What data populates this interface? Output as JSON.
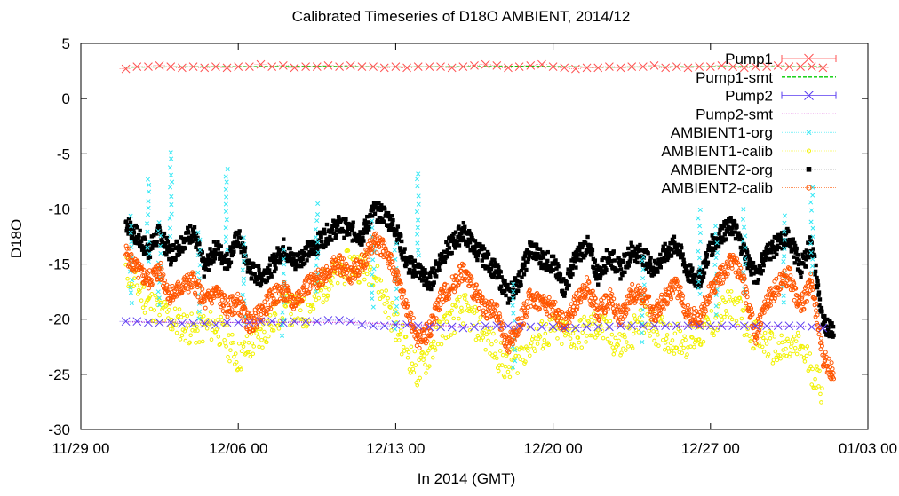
{
  "chart_data": {
    "type": "scatter",
    "title": "Calibrated Timeseries of D18O AMBIENT, 2014/12",
    "xlabel": "In 2014 (GMT)",
    "ylabel": "D18O",
    "x_range": [
      "2014-11-29 00:00",
      "2015-01-03 00:00"
    ],
    "x_ticks": [
      {
        "date": "2014-11-29 00:00",
        "label": "11/29 00"
      },
      {
        "date": "2014-12-06 00:00",
        "label": "12/06 00"
      },
      {
        "date": "2014-12-13 00:00",
        "label": "12/13 00"
      },
      {
        "date": "2014-12-20 00:00",
        "label": "12/20 00"
      },
      {
        "date": "2014-12-27 00:00",
        "label": "12/27 00"
      },
      {
        "date": "2015-01-03 00:00",
        "label": "01/03 00"
      }
    ],
    "ylim": [
      -30,
      5
    ],
    "y_ticks": [
      5,
      0,
      -5,
      -10,
      -15,
      -20,
      -25,
      -30
    ],
    "y_tick_labels": [
      "5",
      "0",
      "-5",
      "-10",
      "-15",
      "-20",
      "-25",
      "-30"
    ],
    "grid": false,
    "legend_position": "top-right",
    "colors": {
      "pump1": "#ff5050",
      "pump1_smt": "#00cc00",
      "pump2": "#5a3cf0",
      "pump2_smt": "#d020d0",
      "ambient1_org": "#33e8f5",
      "ambient1_calib": "#f2f200",
      "ambient2_org": "#000000",
      "ambient2_calib": "#ff5500"
    },
    "series": [
      {
        "key": "pump1",
        "name": "Pump1",
        "marker": "x",
        "style": "points-errorbars",
        "x": [
          "2014-12-01 00:00",
          "2014-12-01 12:00",
          "2014-12-02 00:00",
          "2014-12-02 12:00",
          "2014-12-03 00:00",
          "2014-12-03 12:00",
          "2014-12-04 00:00",
          "2014-12-04 12:00",
          "2014-12-05 00:00",
          "2014-12-05 12:00",
          "2014-12-06 00:00",
          "2014-12-06 12:00",
          "2014-12-07 00:00",
          "2014-12-07 12:00",
          "2014-12-08 00:00",
          "2014-12-08 12:00",
          "2014-12-09 00:00",
          "2014-12-09 12:00",
          "2014-12-10 00:00",
          "2014-12-10 12:00",
          "2014-12-11 00:00",
          "2014-12-11 12:00",
          "2014-12-12 00:00",
          "2014-12-12 12:00",
          "2014-12-13 00:00",
          "2014-12-13 12:00",
          "2014-12-14 00:00",
          "2014-12-14 12:00",
          "2014-12-15 00:00",
          "2014-12-15 12:00",
          "2014-12-16 00:00",
          "2014-12-16 12:00",
          "2014-12-17 00:00",
          "2014-12-17 12:00",
          "2014-12-18 00:00",
          "2014-12-18 12:00",
          "2014-12-19 00:00",
          "2014-12-19 12:00",
          "2014-12-20 00:00",
          "2014-12-20 12:00",
          "2014-12-21 00:00",
          "2014-12-21 12:00",
          "2014-12-22 00:00",
          "2014-12-22 12:00",
          "2014-12-23 00:00",
          "2014-12-23 12:00",
          "2014-12-24 00:00",
          "2014-12-24 12:00",
          "2014-12-25 00:00",
          "2014-12-25 12:00",
          "2014-12-26 00:00",
          "2014-12-26 12:00",
          "2014-12-27 00:00",
          "2014-12-27 12:00",
          "2014-12-28 00:00",
          "2014-12-28 12:00",
          "2014-12-29 00:00",
          "2014-12-29 12:00",
          "2014-12-30 00:00",
          "2014-12-30 12:00",
          "2014-12-31 00:00",
          "2014-12-31 12:00",
          "2015-01-01 00:00"
        ],
        "y": [
          2.7,
          2.9,
          2.9,
          3.0,
          2.9,
          2.8,
          2.9,
          2.8,
          2.9,
          2.8,
          2.9,
          2.9,
          3.1,
          2.9,
          3.0,
          2.8,
          2.9,
          2.9,
          3.0,
          2.9,
          3.0,
          2.9,
          2.9,
          2.8,
          2.9,
          2.8,
          2.9,
          2.9,
          2.9,
          2.8,
          2.9,
          3.0,
          3.1,
          3.0,
          2.8,
          2.9,
          3.0,
          3.1,
          2.9,
          2.8,
          2.7,
          2.8,
          2.8,
          2.9,
          2.8,
          2.9,
          2.9,
          3.0,
          2.8,
          2.9,
          2.8,
          2.9,
          2.9,
          3.0,
          2.9,
          2.8,
          2.9,
          2.9,
          3.0,
          2.9,
          2.9,
          2.9,
          2.8
        ]
      },
      {
        "key": "pump1_smt",
        "name": "Pump1-smt",
        "style": "dashed-line",
        "x": [
          "2014-12-01 00:00",
          "2014-12-04 00:00",
          "2014-12-07 00:00",
          "2014-12-10 00:00",
          "2014-12-13 00:00",
          "2014-12-16 00:00",
          "2014-12-19 00:00",
          "2014-12-22 00:00",
          "2014-12-25 00:00",
          "2014-12-28 00:00",
          "2015-01-01 00:00"
        ],
        "y": [
          2.85,
          2.88,
          2.92,
          2.93,
          2.87,
          2.9,
          2.95,
          2.85,
          2.88,
          2.9,
          2.9
        ]
      },
      {
        "key": "pump2",
        "name": "Pump2",
        "marker": "x",
        "style": "points-errorbars",
        "x": [
          "2014-12-01 00:00",
          "2014-12-01 12:00",
          "2014-12-02 00:00",
          "2014-12-02 12:00",
          "2014-12-03 00:00",
          "2014-12-03 12:00",
          "2014-12-04 00:00",
          "2014-12-04 12:00",
          "2014-12-05 00:00",
          "2014-12-05 12:00",
          "2014-12-06 00:00",
          "2014-12-06 12:00",
          "2014-12-07 00:00",
          "2014-12-07 12:00",
          "2014-12-08 00:00",
          "2014-12-08 12:00",
          "2014-12-09 00:00",
          "2014-12-09 12:00",
          "2014-12-10 00:00",
          "2014-12-10 12:00",
          "2014-12-11 00:00",
          "2014-12-11 12:00",
          "2014-12-12 00:00",
          "2014-12-12 12:00",
          "2014-12-13 00:00",
          "2014-12-13 12:00",
          "2014-12-14 00:00",
          "2014-12-14 12:00",
          "2014-12-15 00:00",
          "2014-12-15 12:00",
          "2014-12-16 00:00",
          "2014-12-16 12:00",
          "2014-12-17 00:00",
          "2014-12-17 12:00",
          "2014-12-18 00:00",
          "2014-12-18 12:00",
          "2014-12-19 00:00",
          "2014-12-19 12:00",
          "2014-12-20 00:00",
          "2014-12-20 12:00",
          "2014-12-21 00:00",
          "2014-12-21 12:00",
          "2014-12-22 00:00",
          "2014-12-22 12:00",
          "2014-12-23 00:00",
          "2014-12-23 12:00",
          "2014-12-24 00:00",
          "2014-12-24 12:00",
          "2014-12-25 00:00",
          "2014-12-25 12:00",
          "2014-12-26 00:00",
          "2014-12-26 12:00",
          "2014-12-27 00:00",
          "2014-12-27 12:00",
          "2014-12-28 00:00",
          "2014-12-28 12:00",
          "2014-12-29 00:00",
          "2014-12-29 12:00",
          "2014-12-30 00:00",
          "2014-12-30 12:00",
          "2014-12-31 00:00",
          "2014-12-31 12:00",
          "2015-01-01 00:00"
        ],
        "y": [
          -20.2,
          -20.2,
          -20.3,
          -20.3,
          -20.3,
          -20.4,
          -20.4,
          -20.4,
          -20.5,
          -20.3,
          -20.3,
          -20.3,
          -20.2,
          -20.2,
          -20.3,
          -20.2,
          -20.2,
          -20.2,
          -20.1,
          -20.1,
          -20.2,
          -20.5,
          -20.6,
          -20.6,
          -20.5,
          -20.5,
          -20.6,
          -20.7,
          -20.7,
          -20.7,
          -20.8,
          -20.7,
          -20.6,
          -20.6,
          -20.6,
          -20.6,
          -20.7,
          -20.7,
          -20.7,
          -20.8,
          -20.8,
          -20.7,
          -20.7,
          -20.7,
          -20.6,
          -20.6,
          -20.6,
          -20.6,
          -20.6,
          -20.6,
          -20.6,
          -20.6,
          -20.6,
          -20.6,
          -20.6,
          -20.6,
          -20.6,
          -20.6,
          -20.6,
          -20.6,
          -20.6,
          -20.7,
          -20.8
        ]
      },
      {
        "key": "pump2_smt",
        "name": "Pump2-smt",
        "style": "dotted-line",
        "x": [
          "2014-12-01 00:00",
          "2014-12-06 00:00",
          "2014-12-11 00:00",
          "2014-12-16 00:00",
          "2014-12-21 00:00",
          "2014-12-26 00:00",
          "2015-01-01 00:00"
        ],
        "y": [
          -20.25,
          -20.3,
          -20.3,
          -20.65,
          -20.75,
          -20.62,
          -20.7
        ]
      },
      {
        "key": "ambient2_org",
        "name": "AMBIENT2-org",
        "marker": "square",
        "style": "dense-points",
        "x": [
          "2014-12-01 00:00",
          "2014-12-01 12:00",
          "2014-12-02 00:00",
          "2014-12-02 12:00",
          "2014-12-03 00:00",
          "2014-12-03 12:00",
          "2014-12-04 00:00",
          "2014-12-04 12:00",
          "2014-12-05 00:00",
          "2014-12-05 12:00",
          "2014-12-06 00:00",
          "2014-12-06 12:00",
          "2014-12-07 00:00",
          "2014-12-07 12:00",
          "2014-12-08 00:00",
          "2014-12-08 12:00",
          "2014-12-09 00:00",
          "2014-12-09 12:00",
          "2014-12-10 00:00",
          "2014-12-10 12:00",
          "2014-12-11 00:00",
          "2014-12-11 12:00",
          "2014-12-12 00:00",
          "2014-12-12 12:00",
          "2014-12-13 00:00",
          "2014-12-13 12:00",
          "2014-12-14 00:00",
          "2014-12-14 12:00",
          "2014-12-15 00:00",
          "2014-12-15 12:00",
          "2014-12-16 00:00",
          "2014-12-16 12:00",
          "2014-12-17 00:00",
          "2014-12-17 12:00",
          "2014-12-18 00:00",
          "2014-12-18 12:00",
          "2014-12-19 00:00",
          "2014-12-19 12:00",
          "2014-12-20 00:00",
          "2014-12-20 12:00",
          "2014-12-21 00:00",
          "2014-12-21 12:00",
          "2014-12-22 00:00",
          "2014-12-22 12:00",
          "2014-12-23 00:00",
          "2014-12-23 12:00",
          "2014-12-24 00:00",
          "2014-12-24 12:00",
          "2014-12-25 00:00",
          "2014-12-25 12:00",
          "2014-12-26 00:00",
          "2014-12-26 12:00",
          "2014-12-27 00:00",
          "2014-12-27 12:00",
          "2014-12-28 00:00",
          "2014-12-28 12:00",
          "2014-12-29 00:00",
          "2014-12-29 12:00",
          "2014-12-30 00:00",
          "2014-12-30 12:00",
          "2014-12-31 00:00",
          "2014-12-31 12:00",
          "2015-01-01 00:00",
          "2015-01-01 12:00"
        ],
        "y": [
          -11.2,
          -12.5,
          -13.8,
          -12.2,
          -14.2,
          -13.0,
          -12.0,
          -15.5,
          -13.5,
          -14.8,
          -12.5,
          -15.5,
          -16.2,
          -15.2,
          -13.5,
          -14.8,
          -14.0,
          -13.2,
          -12.2,
          -11.5,
          -12.0,
          -12.5,
          -10.2,
          -10.5,
          -11.8,
          -15.0,
          -15.5,
          -16.8,
          -14.5,
          -13.2,
          -12.0,
          -13.5,
          -14.5,
          -15.8,
          -17.8,
          -16.5,
          -13.5,
          -14.5,
          -15.0,
          -17.2,
          -14.5,
          -13.2,
          -16.0,
          -14.2,
          -15.5,
          -13.8,
          -14.2,
          -15.5,
          -14.0,
          -13.2,
          -15.8,
          -16.5,
          -13.5,
          -12.2,
          -11.5,
          -13.8,
          -16.2,
          -14.0,
          -13.2,
          -12.5,
          -15.5,
          -13.0,
          -20.5,
          -20.8
        ]
      },
      {
        "key": "ambient1_org",
        "name": "AMBIENT1-org",
        "marker": "x",
        "style": "dense-points",
        "x": [
          "2014-12-01 06:00",
          "2014-12-02 00:00",
          "2014-12-02 12:00",
          "2014-12-03 00:00",
          "2014-12-04 06:00",
          "2014-12-05 12:00",
          "2014-12-06 06:00",
          "2014-12-08 00:00",
          "2014-12-09 12:00",
          "2014-12-12 00:00",
          "2014-12-13 00:00",
          "2014-12-14 00:00",
          "2014-12-18 06:00",
          "2014-12-24 00:00",
          "2014-12-26 12:00",
          "2014-12-27 06:00",
          "2014-12-28 12:00",
          "2014-12-30 06:00",
          "2014-12-31 12:00"
        ],
        "y": [
          -10.5,
          -7.0,
          -11.0,
          -4.5,
          -12.0,
          -6.0,
          -12.5,
          -13.5,
          -9.5,
          -11.0,
          -13.0,
          -6.5,
          -16.5,
          -14.0,
          -10.0,
          -11.5,
          -10.0,
          -10.5,
          -8.0
        ]
      },
      {
        "key": "ambient1_calib",
        "name": "AMBIENT1-calib",
        "marker": "dot",
        "style": "dense-points",
        "x": [
          "2014-12-01 00:00",
          "2014-12-02 00:00",
          "2014-12-03 00:00",
          "2014-12-04 00:00",
          "2014-12-05 00:00",
          "2014-12-06 00:00",
          "2014-12-07 00:00",
          "2014-12-08 00:00",
          "2014-12-09 00:00",
          "2014-12-10 00:00",
          "2014-12-11 00:00",
          "2014-12-12 00:00",
          "2014-12-13 00:00",
          "2014-12-14 00:00",
          "2014-12-15 00:00",
          "2014-12-16 00:00",
          "2014-12-17 00:00",
          "2014-12-18 00:00",
          "2014-12-19 00:00",
          "2014-12-20 00:00",
          "2014-12-21 00:00",
          "2014-12-22 00:00",
          "2014-12-23 00:00",
          "2014-12-24 00:00",
          "2014-12-25 00:00",
          "2014-12-26 00:00",
          "2014-12-27 00:00",
          "2014-12-28 00:00",
          "2014-12-29 00:00",
          "2014-12-30 00:00",
          "2014-12-31 00:00",
          "2015-01-01 00:00"
        ],
        "y": [
          -15.5,
          -18.5,
          -20.0,
          -21.0,
          -20.5,
          -23.5,
          -21.5,
          -19.0,
          -19.5,
          -16.5,
          -15.0,
          -15.5,
          -20.5,
          -25.0,
          -21.0,
          -19.0,
          -21.5,
          -24.5,
          -22.0,
          -21.0,
          -21.5,
          -20.5,
          -22.5,
          -20.0,
          -21.5,
          -22.0,
          -20.5,
          -18.5,
          -21.5,
          -23.0,
          -22.5,
          -26.5
        ]
      },
      {
        "key": "ambient2_calib",
        "name": "AMBIENT2-calib",
        "marker": "circle",
        "style": "dense-points",
        "x": [
          "2014-12-01 00:00",
          "2014-12-01 12:00",
          "2014-12-02 00:00",
          "2014-12-02 12:00",
          "2014-12-03 00:00",
          "2014-12-03 12:00",
          "2014-12-04 00:00",
          "2014-12-04 12:00",
          "2014-12-05 00:00",
          "2014-12-05 12:00",
          "2014-12-06 00:00",
          "2014-12-06 12:00",
          "2014-12-07 00:00",
          "2014-12-07 12:00",
          "2014-12-08 00:00",
          "2014-12-08 12:00",
          "2014-12-09 00:00",
          "2014-12-09 12:00",
          "2014-12-10 00:00",
          "2014-12-10 12:00",
          "2014-12-11 00:00",
          "2014-12-11 12:00",
          "2014-12-12 00:00",
          "2014-12-12 12:00",
          "2014-12-13 00:00",
          "2014-12-13 12:00",
          "2014-12-14 00:00",
          "2014-12-14 12:00",
          "2014-12-15 00:00",
          "2014-12-15 12:00",
          "2014-12-16 00:00",
          "2014-12-16 12:00",
          "2014-12-17 00:00",
          "2014-12-17 12:00",
          "2014-12-18 00:00",
          "2014-12-18 12:00",
          "2014-12-19 00:00",
          "2014-12-19 12:00",
          "2014-12-20 00:00",
          "2014-12-20 12:00",
          "2014-12-21 00:00",
          "2014-12-21 12:00",
          "2014-12-22 00:00",
          "2014-12-22 12:00",
          "2014-12-23 00:00",
          "2014-12-23 12:00",
          "2014-12-24 00:00",
          "2014-12-24 12:00",
          "2014-12-25 00:00",
          "2014-12-25 12:00",
          "2014-12-26 00:00",
          "2014-12-26 12:00",
          "2014-12-27 00:00",
          "2014-12-27 12:00",
          "2014-12-28 00:00",
          "2014-12-28 12:00",
          "2014-12-29 00:00",
          "2014-12-29 12:00",
          "2014-12-30 00:00",
          "2014-12-30 12:00",
          "2014-12-31 00:00",
          "2014-12-31 12:00",
          "2015-01-01 00:00",
          "2015-01-01 12:00"
        ],
        "y": [
          -14.0,
          -15.5,
          -16.5,
          -15.5,
          -18.0,
          -17.0,
          -16.5,
          -18.5,
          -17.5,
          -19.0,
          -18.5,
          -20.5,
          -19.5,
          -18.0,
          -17.5,
          -18.5,
          -17.0,
          -16.5,
          -15.5,
          -15.0,
          -16.0,
          -15.0,
          -13.0,
          -13.5,
          -16.0,
          -19.0,
          -22.0,
          -21.0,
          -18.0,
          -17.0,
          -15.5,
          -17.5,
          -19.0,
          -19.5,
          -22.5,
          -20.5,
          -18.0,
          -18.5,
          -19.0,
          -20.5,
          -18.5,
          -17.0,
          -19.5,
          -18.0,
          -20.0,
          -17.5,
          -18.0,
          -19.5,
          -18.0,
          -17.0,
          -19.5,
          -20.0,
          -17.5,
          -16.0,
          -14.5,
          -17.0,
          -21.5,
          -18.5,
          -17.0,
          -16.0,
          -19.0,
          -16.5,
          -23.5,
          -25.0
        ]
      }
    ]
  }
}
